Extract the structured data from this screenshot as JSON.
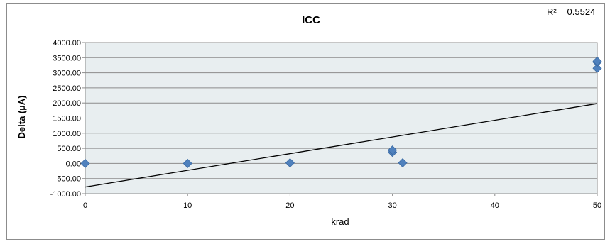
{
  "chart_data": {
    "type": "scatter",
    "title": "ICC",
    "xlabel": "krad",
    "ylabel": "Delta (µA)",
    "annotation": "R² = 0.5524",
    "xlim": [
      0,
      50
    ],
    "ylim": [
      -1000,
      4000
    ],
    "x_ticks": [
      0,
      10,
      20,
      30,
      40,
      50
    ],
    "y_ticks": [
      -1000,
      -500,
      0,
      500,
      1000,
      1500,
      2000,
      2500,
      3000,
      3500,
      4000
    ],
    "y_tick_labels": [
      "-1000.00",
      "-500.00",
      "0.00",
      "500.00",
      "1000.00",
      "1500.00",
      "2000.00",
      "2500.00",
      "3000.00",
      "3500.00",
      "4000.00"
    ],
    "x_tick_labels": [
      "0",
      "10",
      "20",
      "30",
      "40",
      "50"
    ],
    "grid": true,
    "plot_background": "#e8eef0",
    "marker_color": "#4f81bd",
    "marker": "diamond",
    "points": [
      {
        "x": 0,
        "y": 0
      },
      {
        "x": 10,
        "y": 0
      },
      {
        "x": 20,
        "y": 20
      },
      {
        "x": 30,
        "y": 370
      },
      {
        "x": 30,
        "y": 440
      },
      {
        "x": 31,
        "y": 20
      },
      {
        "x": 50,
        "y": 3150
      },
      {
        "x": 50,
        "y": 3350
      },
      {
        "x": 50,
        "y": 3380
      }
    ],
    "trendline": {
      "type": "linear",
      "points": [
        {
          "x": 0,
          "y": -780
        },
        {
          "x": 50,
          "y": 1980
        }
      ],
      "color": "#000000"
    }
  }
}
